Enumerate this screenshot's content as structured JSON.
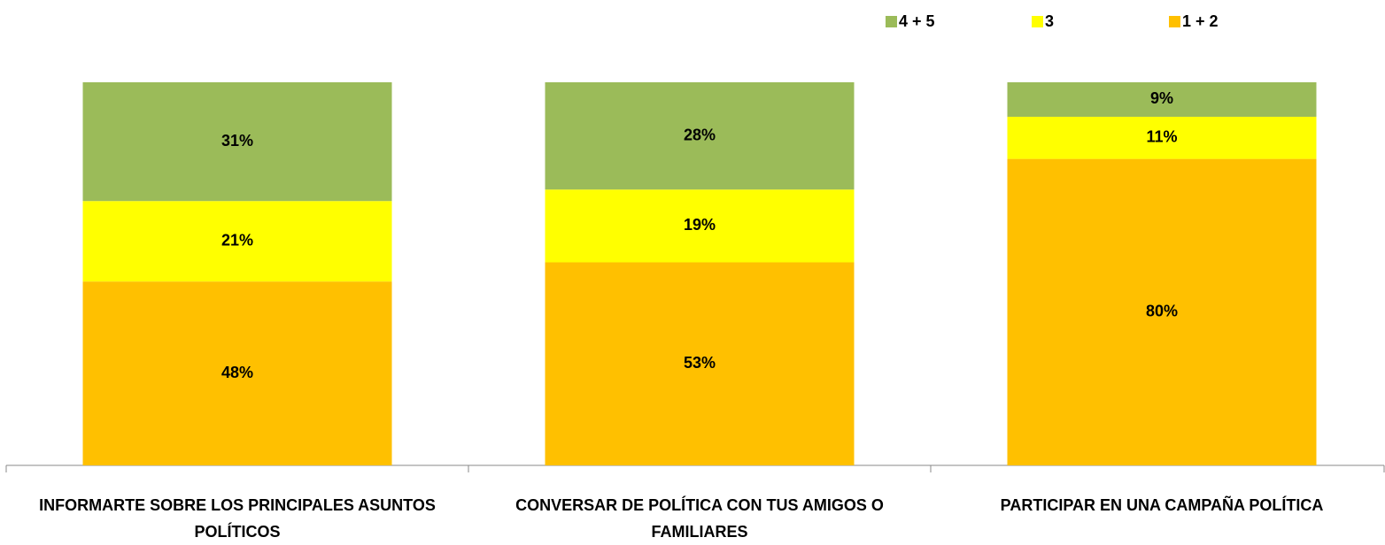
{
  "chart_data": {
    "type": "stacked_bar",
    "categories": [
      "INFORMARTE SOBRE LOS PRINCIPALES ASUNTOS POLÍTICOS",
      "CONVERSAR DE POLÍTICA CON TUS AMIGOS O FAMILIARES",
      "PARTICIPAR EN UNA CAMPAÑA POLÍTICA"
    ],
    "series": [
      {
        "name": "4 + 5",
        "color": "#9bbb59",
        "values": [
          31,
          28,
          9
        ],
        "value_labels": [
          "31%",
          "28%",
          "9%"
        ]
      },
      {
        "name": "3",
        "color": "#ffff00",
        "values": [
          21,
          19,
          11
        ],
        "value_labels": [
          "21%",
          "19%",
          "11%"
        ]
      },
      {
        "name": "1 + 2",
        "color": "#ffc000",
        "values": [
          48,
          53,
          80
        ],
        "value_labels": [
          "48%",
          "53%",
          "80%"
        ]
      }
    ],
    "ylim": [
      0,
      100
    ],
    "legend": "top-right"
  }
}
